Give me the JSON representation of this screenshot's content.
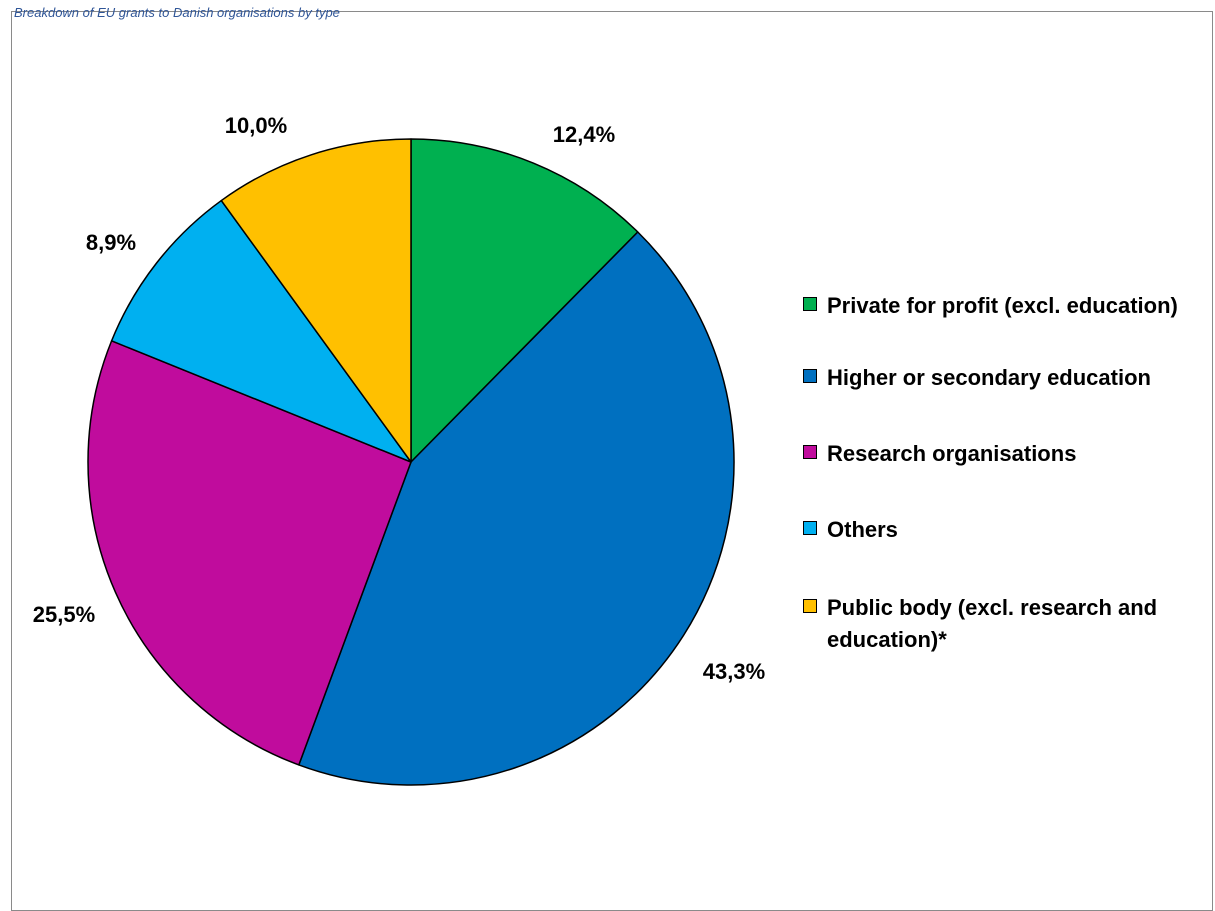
{
  "caption": "Breakdown of EU grants to Danish organisations by type",
  "chart_data": {
    "type": "pie",
    "title": "",
    "slices": [
      {
        "name": "Private for profit (excl. education)",
        "value": 12.4,
        "label": "12,4%",
        "color": "#00b050"
      },
      {
        "name": "Higher or secondary education",
        "value": 43.3,
        "label": "43,3%",
        "color": "#0070c0"
      },
      {
        "name": "Research organisations",
        "value": 25.5,
        "label": "25,5%",
        "color": "#c00c9d"
      },
      {
        "name": "Others",
        "value": 8.9,
        "label": "8,9%",
        "color": "#00b0f0"
      },
      {
        "name": "Public body (excl. research and education)*",
        "value": 10.0,
        "label": "10,0%",
        "color": "#ffc000"
      }
    ],
    "start_angle_deg": 0,
    "direction": "clockwise",
    "legend_position": "right"
  }
}
